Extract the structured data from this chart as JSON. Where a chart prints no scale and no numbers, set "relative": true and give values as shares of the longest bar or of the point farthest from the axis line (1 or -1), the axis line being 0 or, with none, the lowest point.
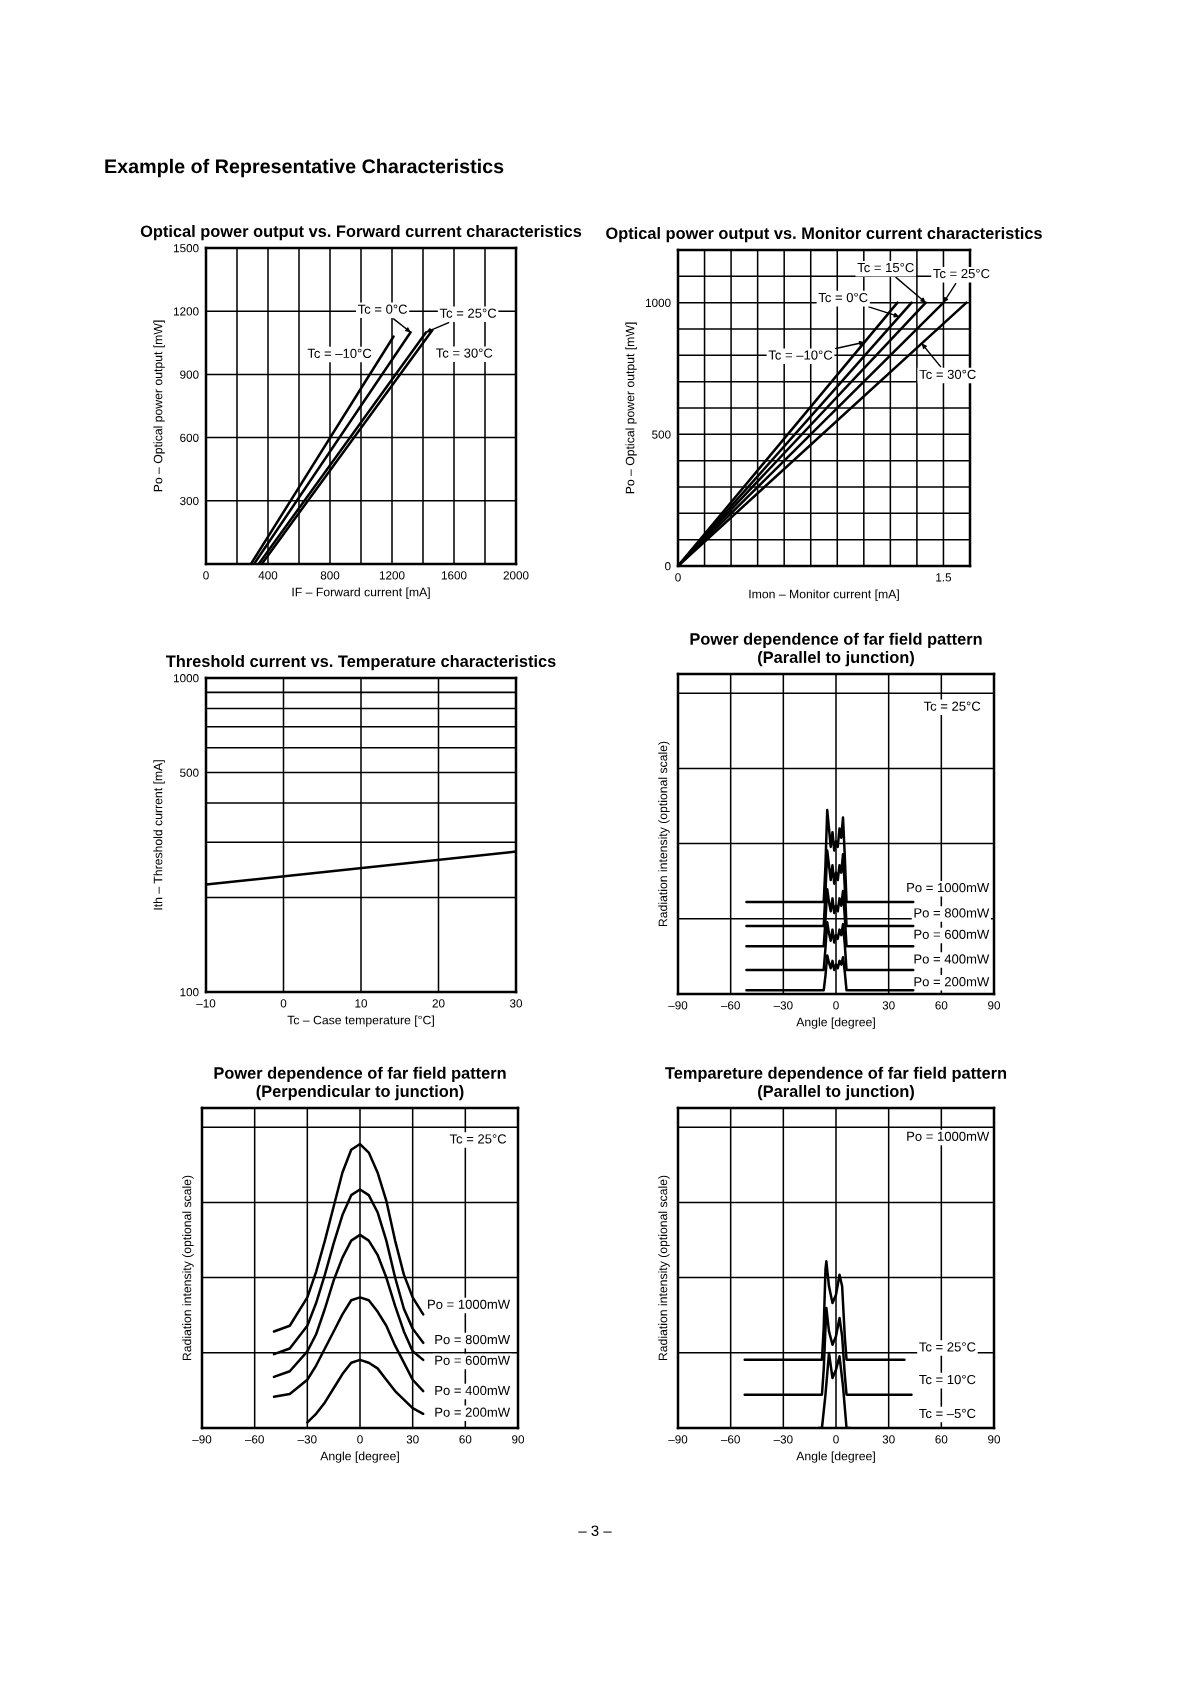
{
  "chart_data": [
    {
      "type": "line",
      "title": "Optical power output vs. Forward current characteristics",
      "xlabel": "IF – Forward current [mA]",
      "ylabel": "Po – Optical power output [mW]",
      "xlim": [
        0,
        2000
      ],
      "xticks": [
        0,
        {
          "value": 200,
          "label": null
        },
        400,
        {
          "value": 600,
          "label": null
        },
        800,
        {
          "value": 1000,
          "label": null
        },
        1200,
        {
          "value": 1400,
          "label": null
        },
        1600,
        {
          "value": 1800,
          "label": null
        },
        2000
      ],
      "ylim": [
        0,
        1500
      ],
      "yticks": [
        {
          "value": 0,
          "label": null
        },
        300,
        600,
        900,
        1200,
        1500
      ],
      "grid": true,
      "annotations": [
        "Example of Representative Characteristics"
      ],
      "series": [
        {
          "name": "Tc = –10°C",
          "color": "#000000",
          "x": [
            290,
            1210
          ],
          "values": [
            0,
            1080
          ]
        },
        {
          "name": "Tc = 0°C",
          "color": "#000000",
          "x": [
            310,
            1320
          ],
          "values": [
            0,
            1100
          ]
        },
        {
          "name": "Tc = 25°C",
          "color": "#000000",
          "x": [
            340,
            1420
          ],
          "values": [
            0,
            1100
          ]
        },
        {
          "name": "Tc = 30°C",
          "color": "#000000",
          "x": [
            360,
            1460
          ],
          "values": [
            0,
            1110
          ]
        }
      ]
    },
    {
      "type": "line",
      "title": "Optical power output vs. Monitor current characteristics",
      "xlabel": "Imon – Monitor current [mA]",
      "ylabel": "Po – Optical power output [mW]",
      "xlim": [
        0,
        1.65
      ],
      "xticks": [
        0,
        {
          "value": 0.15,
          "label": null
        },
        {
          "value": 0.3,
          "label": null
        },
        {
          "value": 0.45,
          "label": null
        },
        {
          "value": 0.6,
          "label": null
        },
        {
          "value": 0.75,
          "label": null
        },
        {
          "value": 0.9,
          "label": null
        },
        {
          "value": 1.05,
          "label": null
        },
        {
          "value": 1.2,
          "label": null
        },
        {
          "value": 1.35,
          "label": null
        },
        1.5
      ],
      "ylim": [
        0,
        1200
      ],
      "yticks": [
        0,
        {
          "value": 100,
          "label": null
        },
        {
          "value": 200,
          "label": null
        },
        {
          "value": 300,
          "label": null
        },
        {
          "value": 400,
          "label": null
        },
        500,
        {
          "value": 600,
          "label": null
        },
        {
          "value": 700,
          "label": null
        },
        {
          "value": 800,
          "label": null
        },
        {
          "value": 900,
          "label": null
        },
        1000,
        {
          "value": 1100,
          "label": null
        }
      ],
      "grid": true,
      "series": [
        {
          "name": "Tc = –10°C",
          "color": "#000000",
          "x": [
            0,
            1.24
          ],
          "values": [
            0,
            1000
          ]
        },
        {
          "name": "Tc = 0°C",
          "color": "#000000",
          "x": [
            0,
            1.32
          ],
          "values": [
            0,
            1000
          ]
        },
        {
          "name": "Tc = 15°C",
          "color": "#000000",
          "x": [
            0,
            1.4
          ],
          "values": [
            0,
            1000
          ]
        },
        {
          "name": "Tc = 25°C",
          "color": "#000000",
          "x": [
            0,
            1.5
          ],
          "values": [
            0,
            1000
          ]
        },
        {
          "name": "Tc = 30°C",
          "color": "#000000",
          "x": [
            0,
            1.63
          ],
          "values": [
            0,
            1000
          ]
        }
      ]
    },
    {
      "type": "line",
      "title": "Threshold current vs. Temperature characteristics",
      "xlabel": "Tc – Case temperature [°C]",
      "ylabel": "Ith – Threshold current [mA]",
      "log": true,
      "xlim": [
        -10,
        30
      ],
      "xticks": [
        {
          "value": -10,
          "label": "–10"
        },
        0,
        10,
        20,
        30
      ],
      "ylim": [
        100,
        1000
      ],
      "yticks": [
        100,
        {
          "value": 200,
          "label": null
        },
        {
          "value": 300,
          "label": null
        },
        {
          "value": 400,
          "label": null
        },
        500,
        {
          "value": 600,
          "label": null
        },
        {
          "value": 700,
          "label": null
        },
        {
          "value": 800,
          "label": null
        },
        {
          "value": 900,
          "label": null
        },
        1000
      ],
      "grid": true,
      "color": "#000000",
      "x": [
        -10,
        30
      ],
      "values": [
        220,
        280
      ]
    },
    {
      "type": "line",
      "title": "Power dependence of far field pattern\n(Parallel to junction)",
      "xlabel": "Angle [degree]",
      "ylabel": "Radiation intensity (optional scale)",
      "relative": true,
      "xlim": [
        -90,
        90
      ],
      "xticks": [
        {
          "value": -90,
          "label": "–90"
        },
        {
          "value": -60,
          "label": "–60"
        },
        {
          "value": -30,
          "label": "–30"
        },
        0,
        30,
        60,
        90
      ],
      "grid": true,
      "annotations": [
        "Tc = 25°C"
      ],
      "series": [
        {
          "name": "Po = 1000mW",
          "color": "#000000",
          "x": [
            -51,
            -7,
            -6,
            -5,
            -4,
            -3,
            -2,
            -1,
            0,
            1,
            2,
            3,
            4,
            5,
            6,
            44
          ],
          "values": [
            0.5,
            0.5,
            0.7,
            1.0,
            0.9,
            0.8,
            0.88,
            0.78,
            0.83,
            0.8,
            0.9,
            0.85,
            0.96,
            0.75,
            0.5,
            0.5
          ]
        },
        {
          "name": "Po = 800mW",
          "color": "#000000",
          "x": [
            -51,
            -7,
            -6,
            -5,
            -4,
            -3,
            -2,
            -1,
            0,
            1,
            2,
            3,
            4,
            5,
            6,
            44
          ],
          "values": [
            0.37,
            0.37,
            0.55,
            0.78,
            0.7,
            0.62,
            0.7,
            0.6,
            0.66,
            0.62,
            0.7,
            0.66,
            0.76,
            0.58,
            0.37,
            0.37
          ]
        },
        {
          "name": "Po = 600mW",
          "color": "#000000",
          "x": [
            -51,
            -7,
            -6,
            -5,
            -4,
            -3,
            -2,
            -1,
            0,
            1,
            2,
            3,
            4,
            5,
            6,
            44
          ],
          "values": [
            0.26,
            0.26,
            0.4,
            0.57,
            0.5,
            0.45,
            0.52,
            0.44,
            0.48,
            0.45,
            0.52,
            0.48,
            0.56,
            0.42,
            0.26,
            0.26
          ]
        },
        {
          "name": "Po = 400mW",
          "color": "#000000",
          "x": [
            -51,
            -7,
            -6,
            -5,
            -4,
            -3,
            -2,
            -1,
            0,
            1,
            2,
            3,
            4,
            5,
            6,
            44
          ],
          "values": [
            0.13,
            0.13,
            0.25,
            0.39,
            0.33,
            0.29,
            0.35,
            0.28,
            0.32,
            0.3,
            0.35,
            0.32,
            0.38,
            0.27,
            0.13,
            0.13
          ]
        },
        {
          "name": "Po = 200mW",
          "color": "#000000",
          "x": [
            -51,
            -7,
            -6,
            -5,
            -4,
            -3,
            -2,
            -1,
            0,
            1,
            2,
            3,
            4,
            5,
            6,
            44
          ],
          "values": [
            0.02,
            0.02,
            0.1,
            0.21,
            0.17,
            0.14,
            0.18,
            0.13,
            0.16,
            0.14,
            0.18,
            0.16,
            0.2,
            0.12,
            0.02,
            0.02
          ]
        }
      ]
    },
    {
      "type": "line",
      "title": "Power dependence of far field pattern\n(Perpendicular to junction)",
      "xlabel": "Angle [degree]",
      "ylabel": "Radiation intensity (optional scale)",
      "relative": true,
      "xlim": [
        -90,
        90
      ],
      "xticks": [
        {
          "value": -90,
          "label": "–90"
        },
        {
          "value": -60,
          "label": "–60"
        },
        {
          "value": -30,
          "label": "–30"
        },
        0,
        30,
        60,
        90
      ],
      "grid": true,
      "annotations": [
        "Tc = 25°C"
      ],
      "series": [
        {
          "name": "Po = 1000mW",
          "color": "#000000",
          "x": [
            -49,
            -40,
            -30,
            -25,
            -20,
            -15,
            -10,
            -5,
            0,
            5,
            10,
            15,
            20,
            25,
            30,
            36
          ],
          "values": [
            0.34,
            0.36,
            0.46,
            0.55,
            0.66,
            0.78,
            0.9,
            0.98,
            1.0,
            0.97,
            0.9,
            0.8,
            0.66,
            0.54,
            0.46,
            0.4
          ]
        },
        {
          "name": "Po = 800mW",
          "color": "#000000",
          "x": [
            -49,
            -40,
            -30,
            -25,
            -20,
            -15,
            -10,
            -5,
            0,
            5,
            10,
            15,
            20,
            25,
            30,
            36
          ],
          "values": [
            0.26,
            0.28,
            0.36,
            0.44,
            0.54,
            0.65,
            0.75,
            0.82,
            0.84,
            0.82,
            0.76,
            0.66,
            0.53,
            0.42,
            0.35,
            0.3
          ]
        },
        {
          "name": "Po = 600mW",
          "color": "#000000",
          "x": [
            -49,
            -40,
            -30,
            -25,
            -20,
            -15,
            -10,
            -5,
            0,
            5,
            10,
            15,
            20,
            25,
            30,
            36
          ],
          "values": [
            0.18,
            0.2,
            0.27,
            0.33,
            0.42,
            0.52,
            0.6,
            0.66,
            0.68,
            0.66,
            0.61,
            0.53,
            0.43,
            0.34,
            0.27,
            0.24
          ]
        },
        {
          "name": "Po = 400mW",
          "color": "#000000",
          "x": [
            -49,
            -40,
            -30,
            -25,
            -20,
            -15,
            -10,
            -5,
            0,
            5,
            10,
            15,
            20,
            25,
            30,
            36
          ],
          "values": [
            0.11,
            0.12,
            0.17,
            0.22,
            0.28,
            0.34,
            0.4,
            0.45,
            0.46,
            0.45,
            0.41,
            0.36,
            0.29,
            0.23,
            0.17,
            0.13
          ]
        },
        {
          "name": "Po = 200mW",
          "color": "#000000",
          "x": [
            -30,
            -25,
            -20,
            -15,
            -10,
            -5,
            0,
            5,
            10,
            15,
            20,
            25,
            30,
            36
          ],
          "values": [
            0.02,
            0.05,
            0.09,
            0.14,
            0.19,
            0.23,
            0.24,
            0.23,
            0.21,
            0.17,
            0.13,
            0.1,
            0.07,
            0.05
          ]
        }
      ]
    },
    {
      "type": "line",
      "title": "Tempareture dependence of far field pattern\n(Parallel to junction)",
      "xlabel": "Angle [degree]",
      "ylabel": "Radiation intensity (optional scale)",
      "relative": true,
      "xlim": [
        -90,
        90
      ],
      "xticks": [
        {
          "value": -90,
          "label": "–90"
        },
        {
          "value": -60,
          "label": "–60"
        },
        {
          "value": -30,
          "label": "–30"
        },
        0,
        30,
        60,
        90
      ],
      "grid": true,
      "annotations": [
        "Po = 1000mW",
        "– 3 –"
      ],
      "series": [
        {
          "name": "Tc = 25°C",
          "color": "#000000",
          "x": [
            -52,
            -8,
            -7,
            -6,
            -5.5,
            -4,
            -2,
            0,
            2,
            3.5,
            5,
            6,
            39
          ],
          "values": [
            0.41,
            0.41,
            0.6,
            0.95,
            1.0,
            0.85,
            0.75,
            0.8,
            0.92,
            0.85,
            0.55,
            0.41,
            0.41
          ]
        },
        {
          "name": "Tc = 10°C",
          "color": "#000000",
          "x": [
            -52,
            -8,
            -7,
            -5.5,
            -4,
            -2,
            0,
            2,
            3.5,
            5,
            6,
            43
          ],
          "values": [
            0.2,
            0.2,
            0.35,
            0.72,
            0.58,
            0.5,
            0.55,
            0.66,
            0.55,
            0.32,
            0.2,
            0.2
          ]
        },
        {
          "name": "Tc = –5°C",
          "color": "#000000",
          "x": [
            -10,
            -8,
            -6,
            -4,
            -2,
            0,
            2,
            4,
            6,
            8
          ],
          "values": [
            0,
            0,
            0.2,
            0.45,
            0.3,
            0.35,
            0.43,
            0.25,
            0,
            0
          ]
        }
      ]
    }
  ]
}
